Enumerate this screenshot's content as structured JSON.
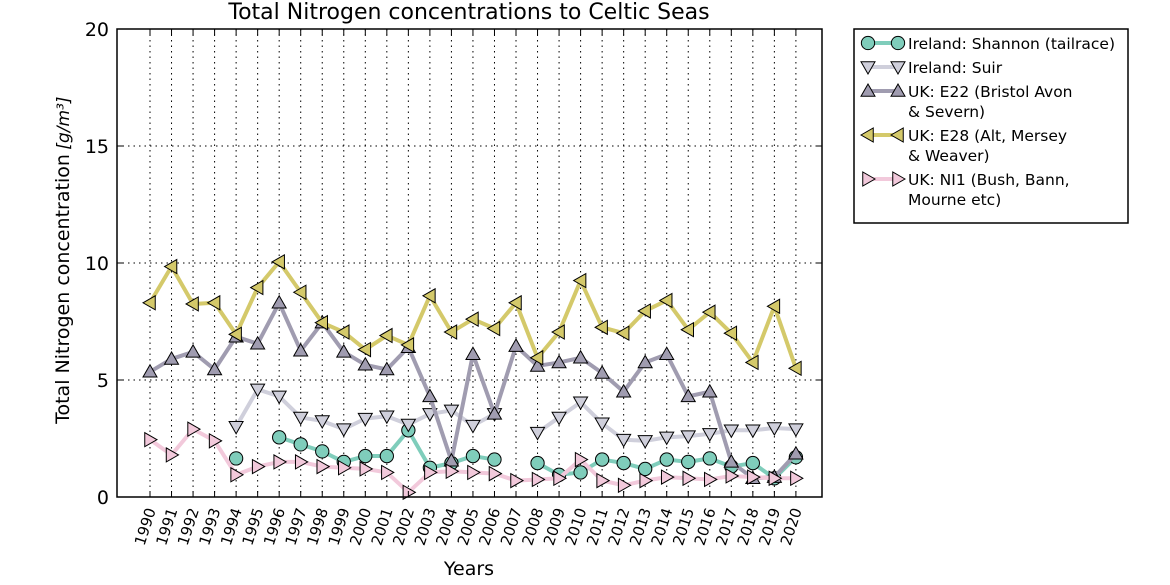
{
  "chart_data": {
    "type": "line",
    "title": "Total Nitrogen concentrations to Celtic Seas",
    "xlabel": "Years",
    "ylabel": "Total Nitrogen concentration",
    "ylabel_unit": "[g/m³]",
    "ylim": [
      0,
      20
    ],
    "yticks": [
      0,
      5,
      10,
      15,
      20
    ],
    "grid": true,
    "legend_position": "outside-top-right",
    "x": [
      "1990",
      "1991",
      "1992",
      "1993",
      "1994",
      "1995",
      "1996",
      "1997",
      "1998",
      "1999",
      "2000",
      "2001",
      "2002",
      "2003",
      "2004",
      "2005",
      "2006",
      "2007",
      "2008",
      "2009",
      "2010",
      "2011",
      "2012",
      "2013",
      "2014",
      "2015",
      "2016",
      "2017",
      "2018",
      "2019",
      "2020"
    ],
    "series": [
      {
        "name": "Ireland: Shannon (tailrace)",
        "name_lines": [
          "Ireland: Shannon (tailrace)"
        ],
        "marker": "circle",
        "color": "#7fcdbb",
        "values": [
          null,
          null,
          null,
          null,
          1.65,
          null,
          2.55,
          2.25,
          1.95,
          1.5,
          1.75,
          1.75,
          2.85,
          1.25,
          1.45,
          1.75,
          1.6,
          null,
          1.45,
          0.95,
          1.05,
          1.6,
          1.45,
          1.2,
          1.6,
          1.5,
          1.65,
          1.3,
          1.45,
          0.8,
          1.7
        ]
      },
      {
        "name": "Ireland: Suir",
        "name_lines": [
          "Ireland: Suir"
        ],
        "marker": "triangle-down",
        "color": "#cfcfdb",
        "values": [
          null,
          null,
          null,
          null,
          3.0,
          4.6,
          4.3,
          3.4,
          3.25,
          2.9,
          3.35,
          3.45,
          3.1,
          3.55,
          3.7,
          3.05,
          3.55,
          null,
          2.75,
          3.4,
          4.05,
          3.15,
          2.45,
          2.4,
          2.55,
          2.6,
          2.7,
          2.85,
          2.85,
          2.95,
          2.9
        ]
      },
      {
        "name": "UK: E22 (Bristol Avon & Severn)",
        "name_lines": [
          "UK: E22 (Bristol Avon",
          "& Severn)"
        ],
        "marker": "triangle-up",
        "color": "#a09cb0",
        "values": [
          5.35,
          5.9,
          6.2,
          5.45,
          6.85,
          6.55,
          8.3,
          6.25,
          7.45,
          6.2,
          5.65,
          5.45,
          6.4,
          4.3,
          1.55,
          6.1,
          3.55,
          6.45,
          5.6,
          5.75,
          5.95,
          5.3,
          4.5,
          5.75,
          6.1,
          4.3,
          4.5,
          1.5,
          0.8,
          0.85,
          1.85
        ]
      },
      {
        "name": "UK: E28 (Alt, Mersey & Weaver)",
        "name_lines": [
          "UK: E28 (Alt, Mersey",
          "& Weaver)"
        ],
        "marker": "triangle-left",
        "color": "#d4c96a",
        "values": [
          8.3,
          9.85,
          8.25,
          8.3,
          6.95,
          8.95,
          10.05,
          8.75,
          7.45,
          7.05,
          6.3,
          6.9,
          6.5,
          8.6,
          7.05,
          7.6,
          7.2,
          8.3,
          5.95,
          7.05,
          9.25,
          7.25,
          7.0,
          7.95,
          8.4,
          7.15,
          7.9,
          7.0,
          5.75,
          8.15,
          5.5
        ]
      },
      {
        "name": "UK: NI1 (Bush, Bann, Mourne etc)",
        "name_lines": [
          "UK: NI1 (Bush, Bann,",
          "Mourne etc)"
        ],
        "marker": "triangle-right",
        "color": "#f2c9db",
        "values": [
          2.45,
          1.8,
          2.9,
          2.4,
          0.95,
          1.3,
          1.5,
          1.5,
          1.3,
          1.25,
          1.2,
          1.05,
          0.2,
          1.05,
          1.1,
          1.05,
          1.0,
          0.7,
          0.75,
          0.8,
          1.6,
          0.7,
          0.5,
          0.7,
          0.85,
          0.8,
          0.75,
          0.9,
          0.85,
          0.8,
          0.8
        ]
      }
    ]
  }
}
